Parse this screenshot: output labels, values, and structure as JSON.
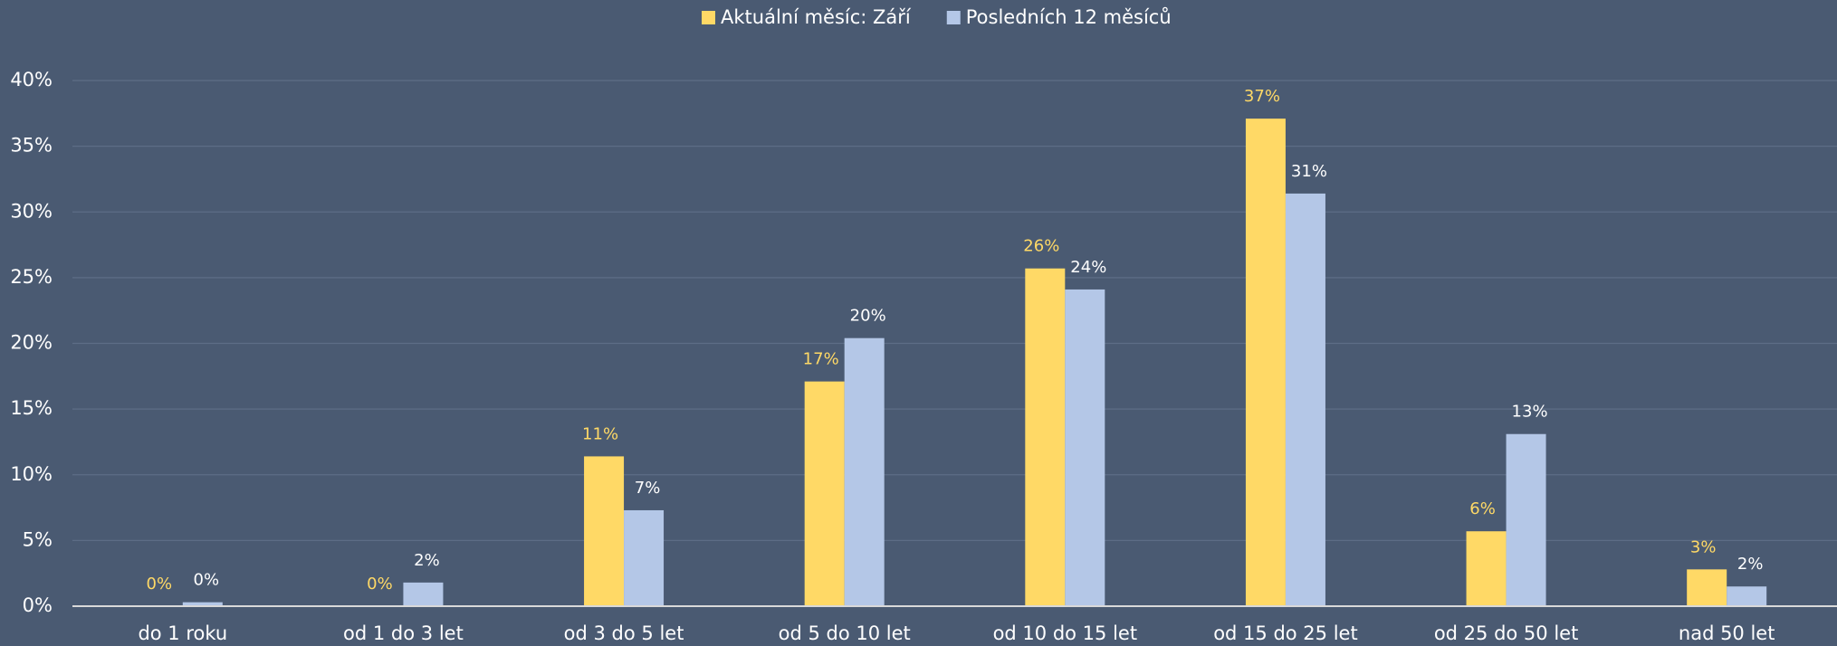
{
  "chart_data": {
    "type": "bar",
    "categories": [
      "do 1 roku",
      "od 1 do 3 let",
      "od 3 do 5 let",
      "od 5 do 10 let",
      "od 10 do 15 let",
      "od 15 do 25 let",
      "od 25 do 50 let",
      "nad 50 let"
    ],
    "series": [
      {
        "name": "Aktuální měsíc: Září",
        "color": "#ffd966",
        "label_color": "#ffd966",
        "values": [
          0,
          0,
          11.4,
          17.1,
          25.7,
          37.1,
          5.7,
          2.8
        ],
        "value_labels": [
          "0%",
          "0%",
          "11%",
          "17%",
          "26%",
          "37%",
          "6%",
          "3%"
        ]
      },
      {
        "name": "Posledních 12 měsíců",
        "color": "#b4c7e7",
        "label_color": "#ffffff",
        "values": [
          0.3,
          1.8,
          7.3,
          20.4,
          24.1,
          31.4,
          13.1,
          1.5
        ],
        "value_labels": [
          "0%",
          "2%",
          "7%",
          "20%",
          "24%",
          "31%",
          "13%",
          "2%"
        ]
      }
    ],
    "ylim": [
      0,
      40
    ],
    "yticks": [
      {
        "value": 0,
        "label": "0%"
      },
      {
        "value": 5,
        "label": "5%"
      },
      {
        "value": 10,
        "label": "10%"
      },
      {
        "value": 15,
        "label": "15%"
      },
      {
        "value": 20,
        "label": "20%"
      },
      {
        "value": 25,
        "label": "25%"
      },
      {
        "value": 30,
        "label": "30%"
      },
      {
        "value": 35,
        "label": "35%"
      },
      {
        "value": 40,
        "label": "40%"
      }
    ],
    "grid": true,
    "legend": "top"
  }
}
